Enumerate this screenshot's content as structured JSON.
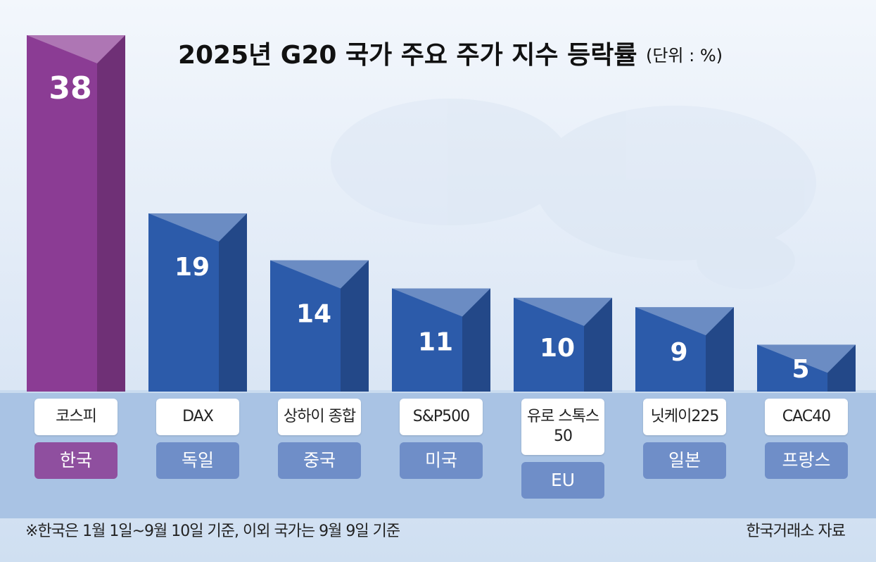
{
  "chart_data": {
    "type": "bar",
    "title": "2025년 G20 국가 주요 주가 지수 등락률",
    "unit": "(단위 : %)",
    "categories": [
      "코스피",
      "DAX",
      "상하이 종합",
      "S&P500",
      "유로 스톡스50",
      "닛케이225",
      "CAC40"
    ],
    "groups": [
      "한국",
      "독일",
      "중국",
      "미국",
      "EU",
      "일본",
      "프랑스"
    ],
    "values": [
      38,
      19,
      14,
      11,
      10,
      9,
      5
    ],
    "colors": [
      "#8b3c94",
      "#2c5baa",
      "#2c5baa",
      "#2c5baa",
      "#2c5baa",
      "#2c5baa",
      "#2c5baa"
    ],
    "group_colors": [
      "#8f4f9f",
      "#6f8ec8",
      "#6f8ec8",
      "#6f8ec8",
      "#6f8ec8",
      "#6f8ec8",
      "#6f8ec8"
    ],
    "note": "※한국은 1월 1일~9월 10일 기준, 이외 국가는 9월 9일 기준",
    "source": "한국거래소 자료"
  }
}
